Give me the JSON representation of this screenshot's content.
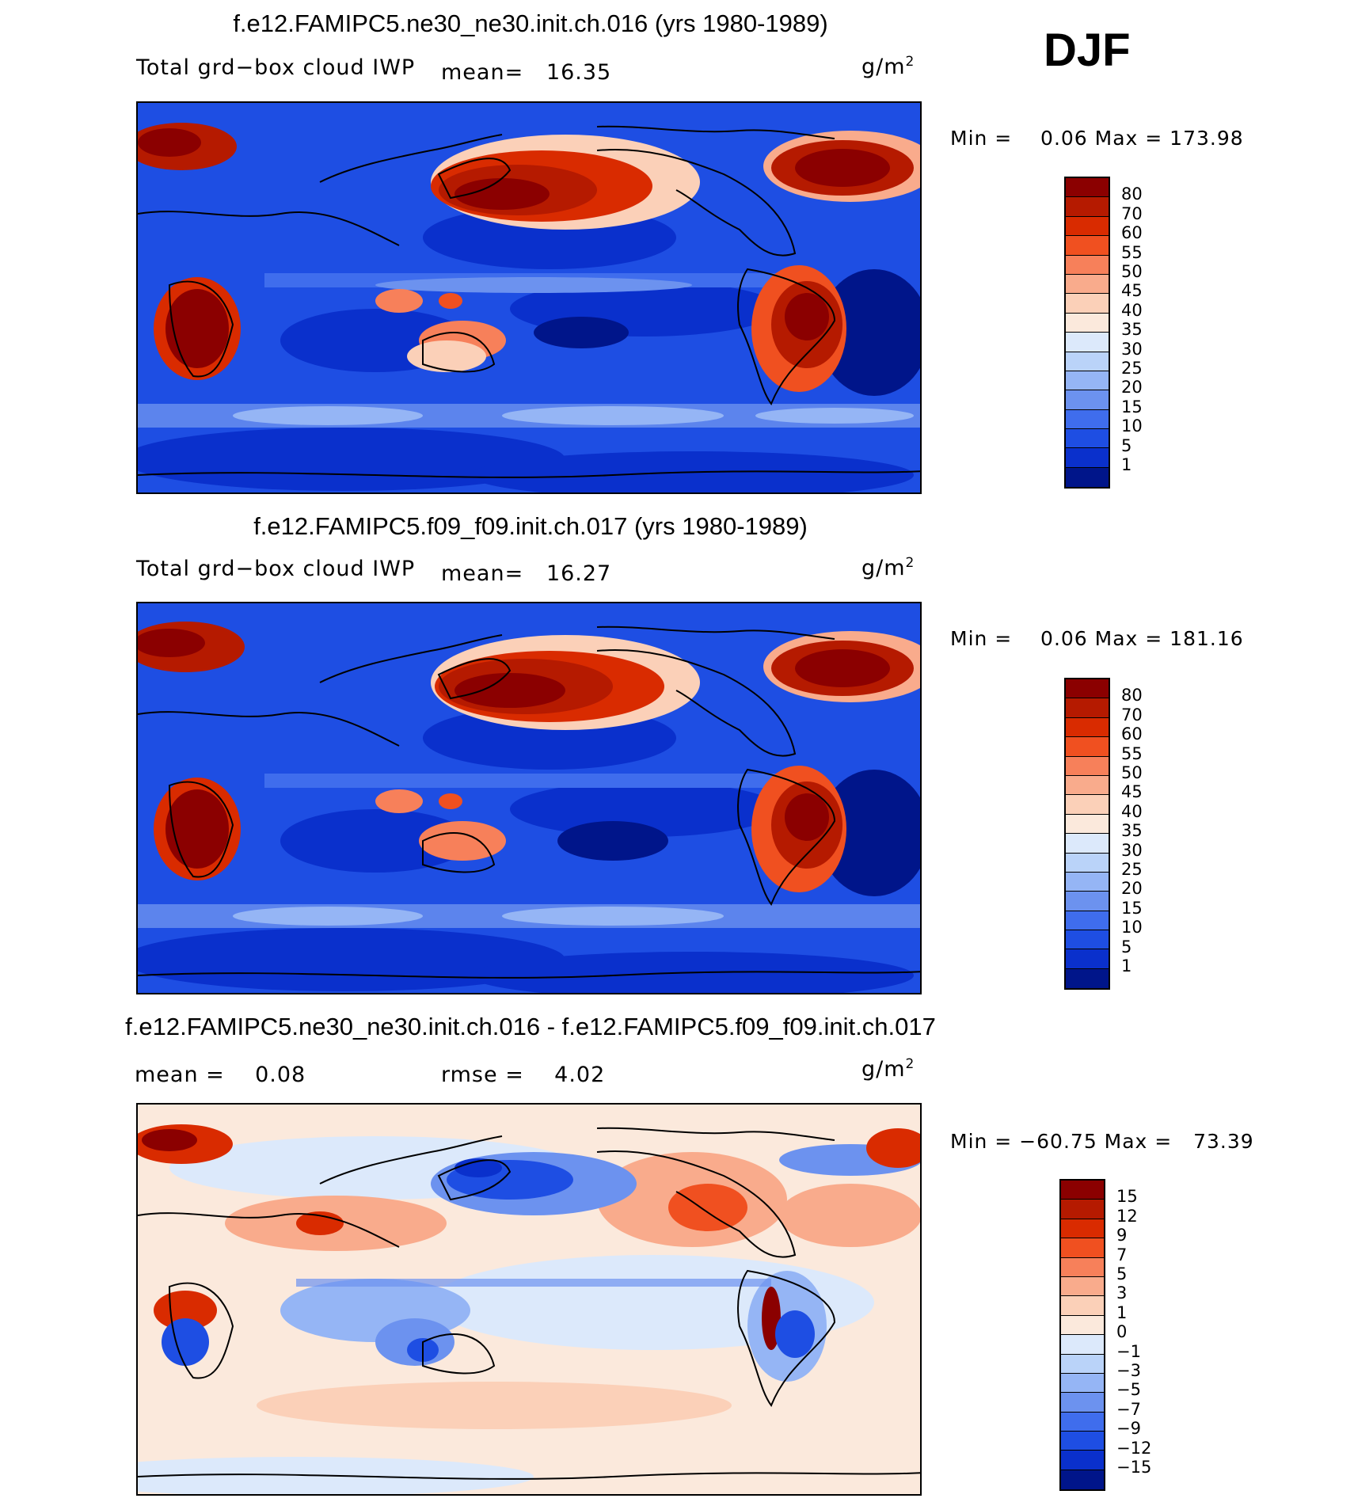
{
  "season": "DJF",
  "units": "g/m",
  "units_sup": "2",
  "panels": [
    {
      "title": "f.e12.FAMIPC5.ne30_ne30.init.ch.016 (yrs 1980-1989)",
      "variable": "Total grd−box cloud IWP",
      "stat": "mean=   16.35",
      "minmax": "Min =    0.06 Max = 173.98"
    },
    {
      "title": "f.e12.FAMIPC5.f09_f09.init.ch.017 (yrs 1980-1989)",
      "variable": "Total grd−box cloud IWP",
      "stat": "mean=   16.27",
      "minmax": "Min =    0.06 Max = 181.16"
    },
    {
      "title": "f.e12.FAMIPC5.ne30_ne30.init.ch.016 - f.e12.FAMIPC5.f09_f09.init.ch.017",
      "stat_mean": "mean =    0.08",
      "stat_rmse": "rmse =    4.02",
      "minmax": "Min = −60.75 Max =   73.39"
    }
  ],
  "colorbar_field": {
    "labels": [
      "80",
      "70",
      "60",
      "55",
      "50",
      "45",
      "40",
      "35",
      "30",
      "25",
      "20",
      "15",
      "10",
      "5",
      "1"
    ],
    "colors": [
      "#8b0000",
      "#b51a00",
      "#d92b00",
      "#f05020",
      "#f7805a",
      "#f9ab8c",
      "#fbd0b8",
      "#fbe9dc",
      "#dce9fb",
      "#bad3f9",
      "#95b5f5",
      "#6c92ef",
      "#3f6ded",
      "#1e4ee3",
      "#0a30cc",
      "#00158a"
    ]
  },
  "colorbar_diff": {
    "labels": [
      "15",
      "12",
      "9",
      "7",
      "5",
      "3",
      "1",
      "0",
      "−1",
      "−3",
      "−5",
      "−7",
      "−9",
      "−12",
      "−15"
    ],
    "colors": [
      "#8b0000",
      "#b51a00",
      "#d92b00",
      "#f05020",
      "#f7805a",
      "#f9ab8c",
      "#fbd0b8",
      "#fbe9dc",
      "#dce9fb",
      "#bad3f9",
      "#95b5f5",
      "#6c92ef",
      "#3f6ded",
      "#1e4ee3",
      "#0a30cc",
      "#00158a"
    ]
  }
}
